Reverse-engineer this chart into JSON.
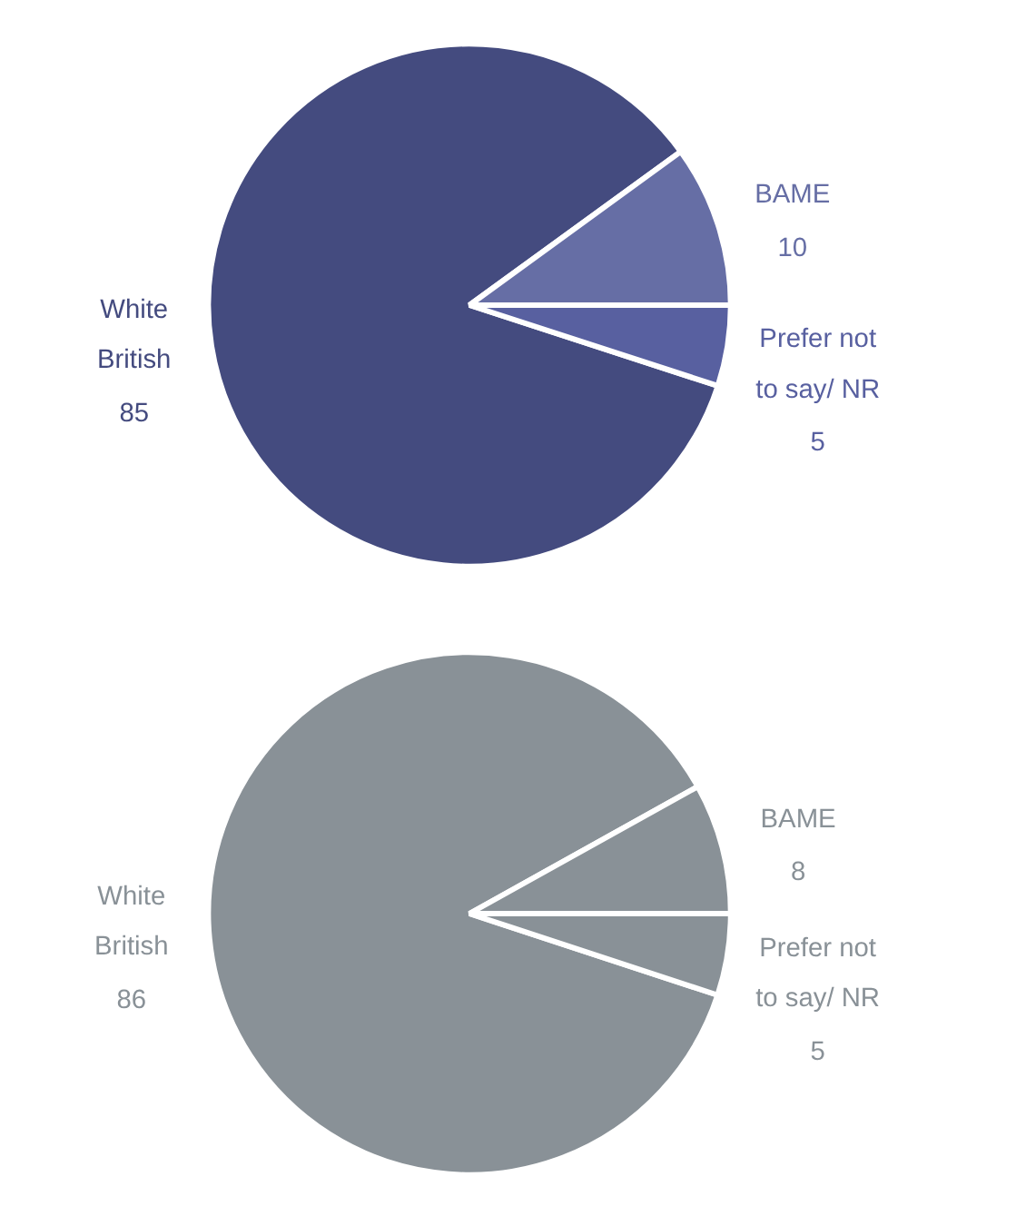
{
  "chart_data": [
    {
      "type": "pie",
      "categories": [
        "White British",
        "BAME",
        "Prefer not to say/ NR"
      ],
      "values": [
        85,
        10,
        5
      ],
      "colors": [
        "#444b7f",
        "#666ea5",
        "#5860a0"
      ],
      "data_labels": true
    },
    {
      "type": "pie",
      "categories": [
        "White British",
        "BAME",
        "Prefer not to say/ NR"
      ],
      "values": [
        86,
        8,
        5
      ],
      "colors": [
        "#899197",
        "#899197",
        "#899197"
      ],
      "data_labels": true
    }
  ]
}
